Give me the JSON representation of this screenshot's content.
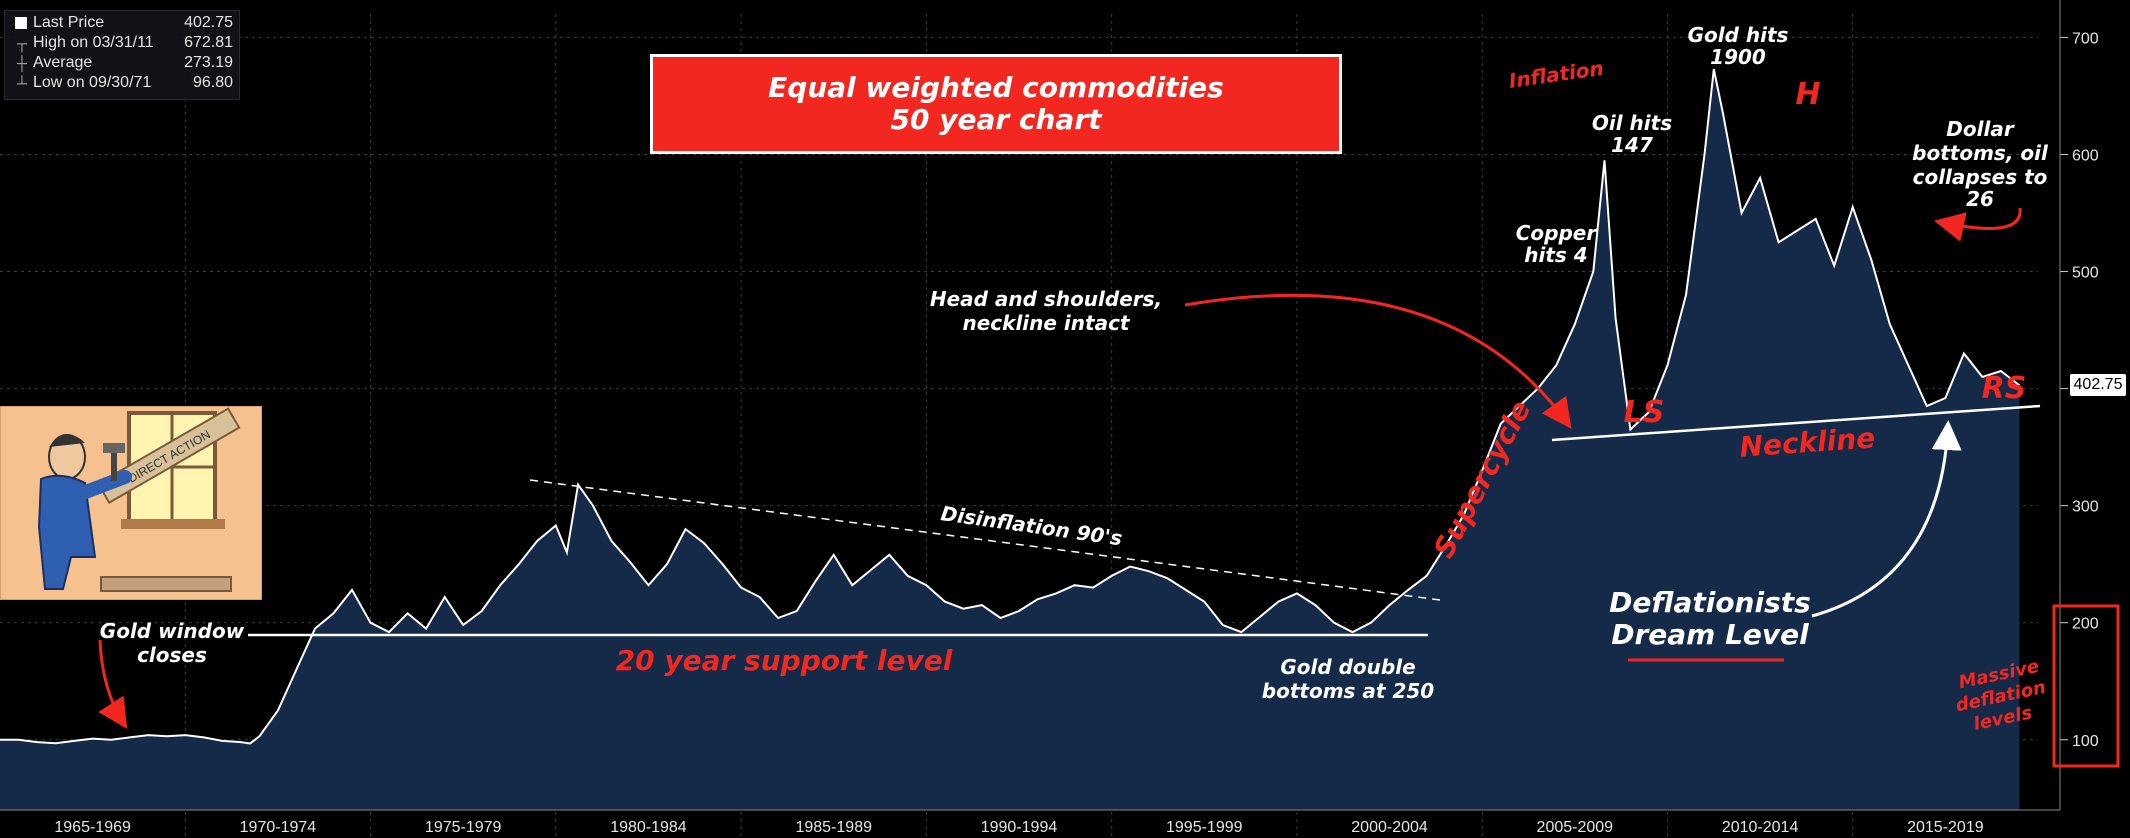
{
  "legend": {
    "last_price_label": "Last Price",
    "last_price_value": "402.75",
    "high_label": "High on 03/31/11",
    "high_value": "672.81",
    "avg_label": "Average",
    "avg_value": "273.19",
    "low_label": "Low on 09/30/71",
    "low_value": "96.80"
  },
  "title_box": {
    "line1": "Equal weighted commodities",
    "line2": "50 year chart"
  },
  "price_tag": "402.75",
  "annotations": {
    "inflation": "Inflation",
    "gold_hits_1": "Gold hits",
    "gold_hits_2": "1900",
    "oil_hits_1": "Oil hits",
    "oil_hits_2": "147",
    "copper_1": "Copper",
    "copper_2": "hits 4",
    "hs_1": "Head and shoulders,",
    "hs_2": "neckline intact",
    "dollar_1": "Dollar",
    "dollar_2": "bottoms, oil",
    "dollar_3": "collapses to",
    "dollar_4": "26",
    "h": "H",
    "ls": "LS",
    "rs": "RS",
    "neckline": "Neckline",
    "supercycle": "Supercycle",
    "disinflation": "Disinflation 90's",
    "gold_window_1": "Gold window",
    "gold_window_2": "closes",
    "support": "20 year support level",
    "gold_double_1": "Gold double",
    "gold_double_2": "bottoms at 250",
    "deflationists_1": "Deflationists",
    "deflationists_2": "Dream Level",
    "massive_1": "Massive",
    "massive_2": "deflation",
    "massive_3": "levels",
    "cartoon_sign": "DIRECT ACTION"
  },
  "colors": {
    "background": "#000000",
    "area_fill": "#142a48",
    "line": "#ffffff",
    "annotation_red": "#f2271f",
    "grid": "#3a3a3a"
  },
  "chart_data": {
    "type": "area",
    "title": "Equal weighted commodities 50 year chart",
    "xlabel": "",
    "ylabel": "",
    "ylim": [
      40,
      720
    ],
    "xlim": [
      1965.0,
      2020.0
    ],
    "yticks": [
      100,
      200,
      300,
      400,
      500,
      600,
      700
    ],
    "ytick_labels": [
      "100",
      "200",
      "300",
      "400",
      "500",
      "600",
      "700"
    ],
    "xtick_labels": [
      "1965-1969",
      "1970-1974",
      "1975-1979",
      "1980-1984",
      "1985-1989",
      "1990-1994",
      "1995-1999",
      "2000-2004",
      "2005-2009",
      "2010-2014",
      "2015-2019"
    ],
    "grid": true,
    "series": [
      {
        "name": "Last Price",
        "x": [
          1965.0,
          1965.5,
          1966.0,
          1966.5,
          1967.0,
          1967.5,
          1968.0,
          1968.5,
          1969.0,
          1969.5,
          1970.0,
          1970.5,
          1971.0,
          1971.5,
          1971.75,
          1972.0,
          1972.5,
          1973.0,
          1973.5,
          1974.0,
          1974.5,
          1975.0,
          1975.5,
          1976.0,
          1976.5,
          1977.0,
          1977.5,
          1978.0,
          1978.5,
          1979.0,
          1979.5,
          1980.0,
          1980.3,
          1980.6,
          1981.0,
          1981.5,
          1982.0,
          1982.5,
          1983.0,
          1983.5,
          1984.0,
          1984.5,
          1985.0,
          1985.5,
          1986.0,
          1986.5,
          1987.0,
          1987.5,
          1988.0,
          1988.5,
          1989.0,
          1989.5,
          1990.0,
          1990.5,
          1991.0,
          1991.5,
          1992.0,
          1992.5,
          1993.0,
          1993.5,
          1994.0,
          1994.5,
          1995.0,
          1995.5,
          1996.0,
          1996.5,
          1997.0,
          1997.5,
          1998.0,
          1998.5,
          1999.0,
          1999.5,
          2000.0,
          2000.5,
          2001.0,
          2001.5,
          2002.0,
          2002.5,
          2003.0,
          2003.5,
          2004.0,
          2004.5,
          2005.0,
          2005.5,
          2006.0,
          2006.5,
          2007.0,
          2007.5,
          2008.0,
          2008.3,
          2008.6,
          2009.0,
          2009.5,
          2010.0,
          2010.5,
          2011.0,
          2011.25,
          2011.5,
          2012.0,
          2012.5,
          2013.0,
          2013.5,
          2014.0,
          2014.5,
          2015.0,
          2015.5,
          2016.0,
          2016.5,
          2017.0,
          2017.5,
          2018.0,
          2018.5,
          2019.0,
          2019.5
        ],
        "values": [
          100,
          100,
          98,
          97,
          99,
          101,
          100,
          102,
          104,
          103,
          104,
          102,
          99,
          98,
          96.8,
          103,
          125,
          160,
          195,
          208,
          228,
          200,
          192,
          208,
          195,
          222,
          198,
          210,
          232,
          250,
          270,
          283,
          260,
          318,
          300,
          270,
          252,
          232,
          250,
          280,
          268,
          250,
          230,
          222,
          204,
          210,
          235,
          258,
          232,
          245,
          258,
          240,
          232,
          218,
          212,
          215,
          204,
          210,
          220,
          225,
          232,
          230,
          240,
          248,
          244,
          238,
          228,
          218,
          198,
          192,
          205,
          218,
          225,
          215,
          200,
          192,
          200,
          215,
          228,
          240,
          265,
          292,
          330,
          370,
          385,
          400,
          420,
          455,
          500,
          595,
          460,
          365,
          380,
          420,
          480,
          600,
          672.81,
          635,
          550,
          580,
          525,
          535,
          545,
          505,
          555,
          510,
          455,
          420,
          385,
          392,
          430,
          410,
          415,
          402.75
        ]
      }
    ]
  }
}
